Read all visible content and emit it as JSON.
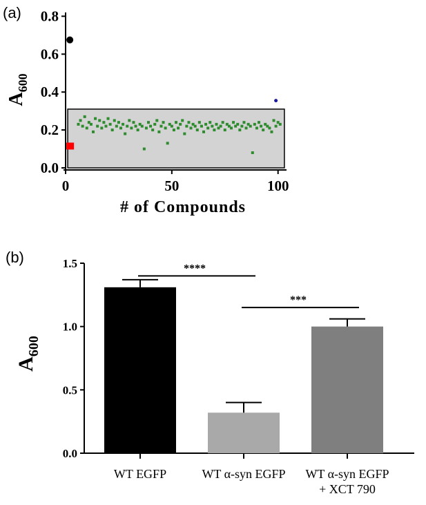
{
  "panels": {
    "a_label": "(a)",
    "b_label": "(b)"
  },
  "colors": {
    "axis": "#000000",
    "shaded_box": "#d3d3d3",
    "green_points": "#2e8b2e",
    "red_marker": "#ff0000",
    "black_marker": "#000000",
    "blue_marker": "#1a1aa0",
    "bar_wt_egfp": "#000000",
    "bar_asyn": "#a9a9a9",
    "bar_xct": "#7f7f7f"
  },
  "chart_data": [
    {
      "type": "scatter",
      "panel": "a",
      "title": "",
      "xlabel": "# of Compounds",
      "ylabel_main": "A",
      "ylabel_sub": "600",
      "xlim": [
        0,
        104
      ],
      "ylim": [
        0,
        0.82
      ],
      "xticks": [
        0,
        50,
        100
      ],
      "xtick_labels": [
        "0",
        "50",
        "100"
      ],
      "yticks": [
        0.0,
        0.2,
        0.4,
        0.6,
        0.8
      ],
      "ytick_labels": [
        "0.0",
        "0.2",
        "0.4",
        "0.6",
        "0.8"
      ],
      "grid": false,
      "shaded_region": {
        "x": [
          1,
          103
        ],
        "y": [
          0,
          0.31
        ]
      },
      "series": [
        {
          "marker": "circle",
          "color": "black_marker",
          "points": [
            [
              2,
              0.675
            ]
          ]
        },
        {
          "marker": "square",
          "color": "red_marker",
          "points": [
            [
              2,
              0.115
            ]
          ]
        },
        {
          "marker": "circle-small",
          "color": "blue_marker",
          "points": [
            [
              99,
              0.355
            ]
          ]
        },
        {
          "marker": "square-small",
          "color": "green_points",
          "x": [
            6,
            7,
            8,
            9,
            10,
            11,
            12,
            13,
            14,
            15,
            16,
            17,
            18,
            19,
            20,
            21,
            22,
            23,
            24,
            25,
            26,
            27,
            28,
            29,
            30,
            31,
            32,
            33,
            34,
            35,
            36,
            37,
            38,
            39,
            40,
            41,
            42,
            43,
            44,
            45,
            46,
            47,
            48,
            49,
            50,
            51,
            52,
            53,
            54,
            55,
            56,
            57,
            58,
            59,
            60,
            61,
            62,
            63,
            64,
            65,
            66,
            67,
            68,
            69,
            70,
            71,
            72,
            73,
            74,
            75,
            76,
            77,
            78,
            79,
            80,
            81,
            82,
            83,
            84,
            85,
            86,
            87,
            88,
            89,
            90,
            91,
            92,
            93,
            94,
            95,
            96,
            97,
            98,
            99,
            100,
            101
          ],
          "y": [
            0.23,
            0.25,
            0.22,
            0.27,
            0.21,
            0.24,
            0.23,
            0.19,
            0.26,
            0.22,
            0.25,
            0.21,
            0.24,
            0.22,
            0.26,
            0.23,
            0.2,
            0.25,
            0.22,
            0.24,
            0.21,
            0.23,
            0.18,
            0.22,
            0.25,
            0.21,
            0.24,
            0.22,
            0.2,
            0.23,
            0.22,
            0.1,
            0.21,
            0.24,
            0.22,
            0.2,
            0.23,
            0.25,
            0.19,
            0.22,
            0.24,
            0.21,
            0.13,
            0.23,
            0.22,
            0.2,
            0.24,
            0.21,
            0.23,
            0.25,
            0.18,
            0.22,
            0.24,
            0.21,
            0.23,
            0.22,
            0.2,
            0.24,
            0.22,
            0.19,
            0.23,
            0.21,
            0.24,
            0.22,
            0.2,
            0.23,
            0.21,
            0.22,
            0.24,
            0.2,
            0.23,
            0.22,
            0.21,
            0.24,
            0.22,
            0.23,
            0.2,
            0.22,
            0.24,
            0.21,
            0.23,
            0.22,
            0.08,
            0.23,
            0.21,
            0.24,
            0.22,
            0.2,
            0.23,
            0.22,
            0.21,
            0.19,
            0.25,
            0.22,
            0.24,
            0.23
          ]
        }
      ]
    },
    {
      "type": "bar",
      "panel": "b",
      "title": "",
      "xlabel": "",
      "ylabel_main": "A",
      "ylabel_sub": "600",
      "ylim": [
        0,
        1.5
      ],
      "yticks": [
        0.0,
        0.5,
        1.0,
        1.5
      ],
      "ytick_labels": [
        "0.0",
        "0.5",
        "1.0",
        "1.5"
      ],
      "grid": false,
      "categories": [
        [
          "WT EGFP"
        ],
        [
          "WT α-syn EGFP"
        ],
        [
          "WT α-syn EGFP",
          "+ XCT 790"
        ]
      ],
      "values": [
        1.31,
        0.32,
        1.0
      ],
      "errors": [
        0.06,
        0.08,
        0.06
      ],
      "bar_colors": [
        "bar_wt_egfp",
        "bar_asyn",
        "bar_xct"
      ],
      "significance": [
        {
          "from": 0,
          "to": 1,
          "level": 1.4,
          "label": "****"
        },
        {
          "from": 1,
          "to": 2,
          "level": 1.15,
          "label": "***"
        }
      ]
    }
  ]
}
